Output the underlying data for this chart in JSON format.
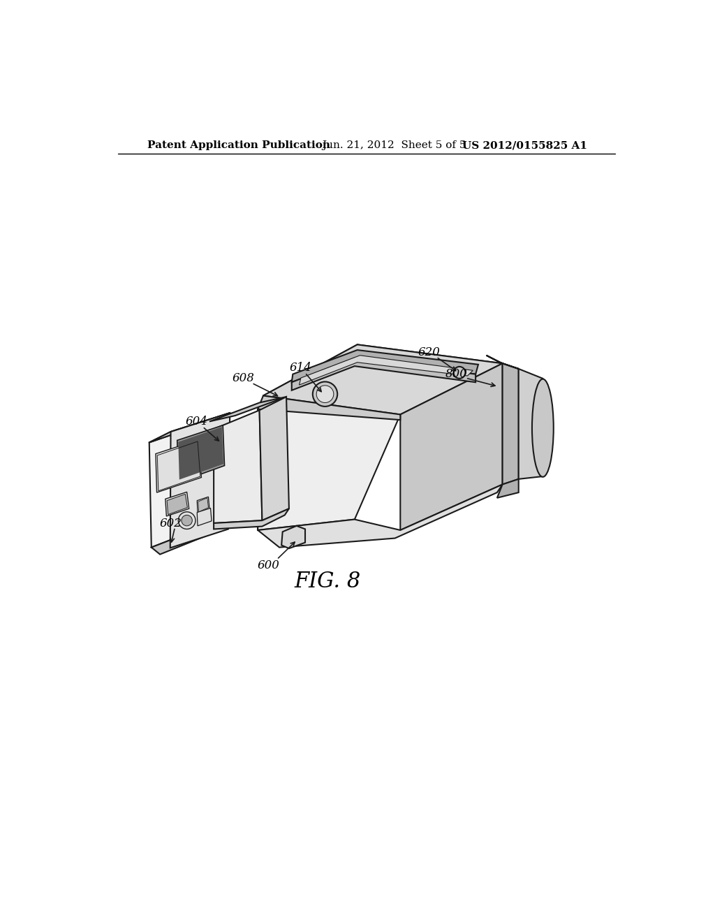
{
  "background_color": "#ffffff",
  "header_left": "Patent Application Publication",
  "header_center": "Jun. 21, 2012  Sheet 5 of 5",
  "header_right": "US 2012/0155825 A1",
  "figure_label": "FIG. 8",
  "line_color": "#1a1a1a",
  "line_width": 1.5,
  "header_fontsize": 11,
  "label_fontsize": 12,
  "fig_label_fontsize": 22
}
